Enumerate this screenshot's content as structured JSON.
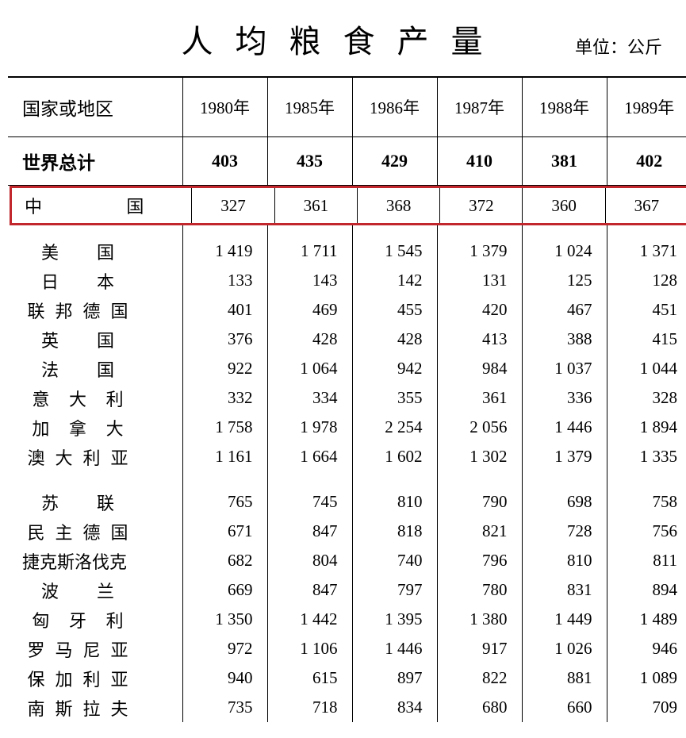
{
  "title": "人均粮食产量",
  "unit_label": "单位：公斤",
  "highlight_color": "#c1272d",
  "background_color": "#ffffff",
  "text_color": "#000000",
  "border_color": "#000000",
  "table": {
    "type": "table",
    "region_header": "国家或地区",
    "years": [
      "1980年",
      "1985年",
      "1986年",
      "1987年",
      "1988年",
      "1989年"
    ],
    "world_total": {
      "label": "世界总计",
      "values": [
        "403",
        "435",
        "429",
        "410",
        "381",
        "402"
      ]
    },
    "highlight_row": {
      "label_chars": [
        "中",
        "国"
      ],
      "values": [
        "327",
        "361",
        "368",
        "372",
        "360",
        "367"
      ]
    },
    "groups": [
      {
        "rows": [
          {
            "label_chars": [
              "美",
              "国"
            ],
            "values": [
              "1 419",
              "1 711",
              "1 545",
              "1 379",
              "1 024",
              "1 371"
            ]
          },
          {
            "label_chars": [
              "日",
              "本"
            ],
            "values": [
              "133",
              "143",
              "142",
              "131",
              "125",
              "128"
            ]
          },
          {
            "label_chars": [
              "联",
              "邦",
              "德",
              "国"
            ],
            "values": [
              "401",
              "469",
              "455",
              "420",
              "467",
              "451"
            ]
          },
          {
            "label_chars": [
              "英",
              "国"
            ],
            "values": [
              "376",
              "428",
              "428",
              "413",
              "388",
              "415"
            ]
          },
          {
            "label_chars": [
              "法",
              "国"
            ],
            "values": [
              "922",
              "1 064",
              "942",
              "984",
              "1 037",
              "1 044"
            ]
          },
          {
            "label_chars": [
              "意",
              "大",
              "利"
            ],
            "values": [
              "332",
              "334",
              "355",
              "361",
              "336",
              "328"
            ]
          },
          {
            "label_chars": [
              "加",
              "拿",
              "大"
            ],
            "values": [
              "1 758",
              "1 978",
              "2 254",
              "2 056",
              "1 446",
              "1 894"
            ]
          },
          {
            "label_chars": [
              "澳",
              "大",
              "利",
              "亚"
            ],
            "values": [
              "1 161",
              "1 664",
              "1 602",
              "1 302",
              "1 379",
              "1 335"
            ]
          }
        ]
      },
      {
        "rows": [
          {
            "label_chars": [
              "苏",
              "联"
            ],
            "values": [
              "765",
              "745",
              "810",
              "790",
              "698",
              "758"
            ]
          },
          {
            "label_chars": [
              "民",
              "主",
              "德",
              "国"
            ],
            "values": [
              "671",
              "847",
              "818",
              "821",
              "728",
              "756"
            ]
          },
          {
            "label_tight": "捷克斯洛伐克",
            "values": [
              "682",
              "804",
              "740",
              "796",
              "810",
              "811"
            ]
          },
          {
            "label_chars": [
              "波",
              "兰"
            ],
            "values": [
              "669",
              "847",
              "797",
              "780",
              "831",
              "894"
            ]
          },
          {
            "label_chars": [
              "匈",
              "牙",
              "利"
            ],
            "values": [
              "1 350",
              "1 442",
              "1 395",
              "1 380",
              "1 449",
              "1 489"
            ]
          },
          {
            "label_chars": [
              "罗",
              "马",
              "尼",
              "亚"
            ],
            "values": [
              "972",
              "1 106",
              "1 446",
              "917",
              "1 026",
              "946"
            ]
          },
          {
            "label_chars": [
              "保",
              "加",
              "利",
              "亚"
            ],
            "values": [
              "940",
              "615",
              "897",
              "822",
              "881",
              "1 089"
            ]
          },
          {
            "label_chars": [
              "南",
              "斯",
              "拉",
              "夫"
            ],
            "values": [
              "735",
              "718",
              "834",
              "680",
              "660",
              "709"
            ]
          }
        ]
      }
    ]
  }
}
